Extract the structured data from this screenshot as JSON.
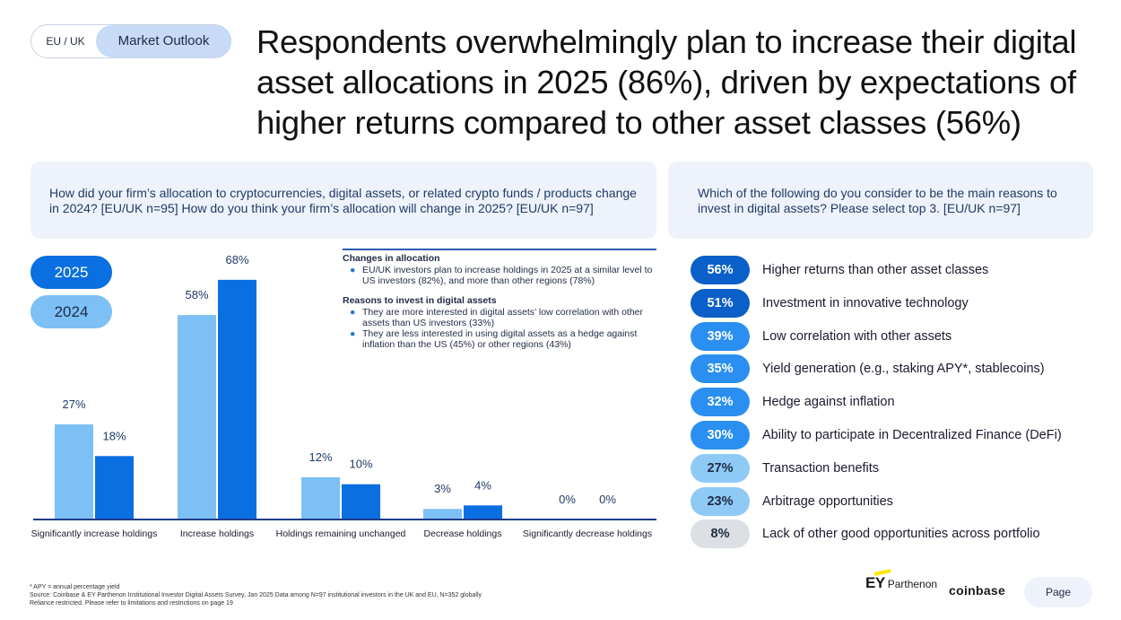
{
  "header": {
    "region_label": "EU / UK",
    "section_label": "Market Outlook",
    "title": "Respondents overwhelmingly plan to increase their digital asset allocations in 2025 (86%), driven by expectations of higher returns compared to other asset classes (56%)"
  },
  "left_question": "How did your firm’s allocation to cryptocurrencies, digital assets, or related crypto funds / products change in 2024? [EU/UK n=95] How do you think your firm’s allocation will change in 2025? [EU/UK n=97]",
  "right_question": "Which of the following do you consider to be the main reasons to invest in digital assets? Please select top 3. [EU/UK n=97]",
  "legend": {
    "label_2025": "2025",
    "label_2024": "2024"
  },
  "notes": {
    "allocation_heading": "Changes in allocation",
    "allocation_items": [
      "EU/UK investors plan to increase holdings in 2025 at a similar level to US investors (82%), and more than other regions (78%)"
    ],
    "reasons_heading": "Reasons to invest in digital assets",
    "reasons_items": [
      "They are more interested in digital assets’ low correlation with other assets than US investors (33%)",
      "They are less interested in using digital assets as a hedge against inflation than the US (45%) or other regions (43%)"
    ]
  },
  "chart_data": [
    {
      "type": "bar",
      "categories": [
        "Significantly increase holdings",
        "Increase holdings",
        "Holdings remaining unchanged",
        "Decrease holdings",
        "Significantly decrease holdings"
      ],
      "series": [
        {
          "name": "2024",
          "values": [
            27,
            58,
            12,
            3,
            0
          ],
          "labels": [
            "27%",
            "58%",
            "12%",
            "3%",
            "0%"
          ],
          "color": "#7cc0f5"
        },
        {
          "name": "2025",
          "values": [
            18,
            68,
            10,
            4,
            0
          ],
          "labels": [
            "18%",
            "68%",
            "10%",
            "4%",
            "0%"
          ],
          "color": "#0a6fe0"
        }
      ],
      "ylim": [
        0,
        70
      ],
      "grid": false
    },
    {
      "type": "table",
      "rows": [
        {
          "value": 56,
          "label_value": "56%",
          "label": "Higher returns than other asset classes",
          "color": "#0a5fc8"
        },
        {
          "value": 51,
          "label_value": "51%",
          "label": "Investment in innovative technology",
          "color": "#0a5fc8"
        },
        {
          "value": 39,
          "label_value": "39%",
          "label": "Low correlation with other assets",
          "color": "#2a8ff0"
        },
        {
          "value": 35,
          "label_value": "35%",
          "label": "Yield generation (e.g., staking APY*, stablecoins)",
          "color": "#2a8ff0"
        },
        {
          "value": 32,
          "label_value": "32%",
          "label": "Hedge against inflation",
          "color": "#2a8ff0"
        },
        {
          "value": 30,
          "label_value": "30%",
          "label": "Ability to participate in Decentralized Finance (DeFi)",
          "color": "#2a8ff0"
        },
        {
          "value": 27,
          "label_value": "27%",
          "label": "Transaction benefits",
          "color": "#8fcaf7"
        },
        {
          "value": 23,
          "label_value": "23%",
          "label": "Arbitrage opportunities",
          "color": "#8fcaf7"
        },
        {
          "value": 8,
          "label_value": "8%",
          "label": "Lack of other good opportunities across portfolio",
          "color": "#dcdfe4"
        }
      ]
    }
  ],
  "footer": {
    "line1": "* APY = annual percentage yield",
    "line2": "Source: Coinbase & EY Parthenon Institutional Investor Digital Assets Survey, Jan 2025 Data among N=97 institutional investors in the UK and EU, N=352 globally",
    "line3": "Reliance restricted. Please refer to limitations and restrictions on page 19"
  },
  "branding": {
    "ey": "EY",
    "parthenon": "Parthenon",
    "coinbase": "coinbase",
    "page_label": "Page"
  }
}
